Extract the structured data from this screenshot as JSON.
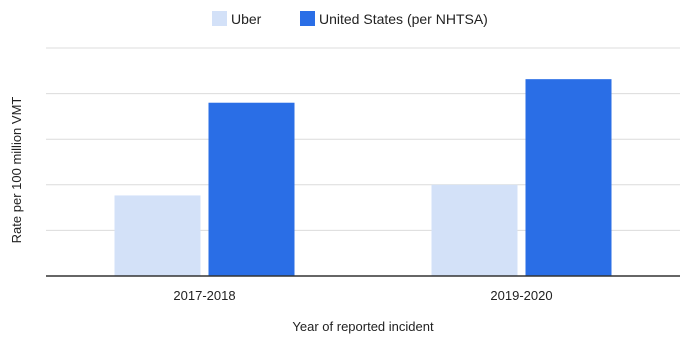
{
  "chart_data": {
    "type": "bar",
    "title": "",
    "xlabel": "Year of reported incident",
    "ylabel": "Rate per 100 million VMT",
    "categories": [
      "2017-2018",
      "2019-2020"
    ],
    "series": [
      {
        "name": "Uber",
        "color": "#d3e1f8",
        "values": [
          1.06,
          1.2
        ]
      },
      {
        "name": "United States (per NHTSA)",
        "color": "#2a6ee6",
        "values": [
          2.28,
          2.59
        ]
      }
    ],
    "ylim": [
      0,
      3
    ],
    "grid": true,
    "y_tick_labels_shown": false,
    "legend_position": "top-center"
  }
}
